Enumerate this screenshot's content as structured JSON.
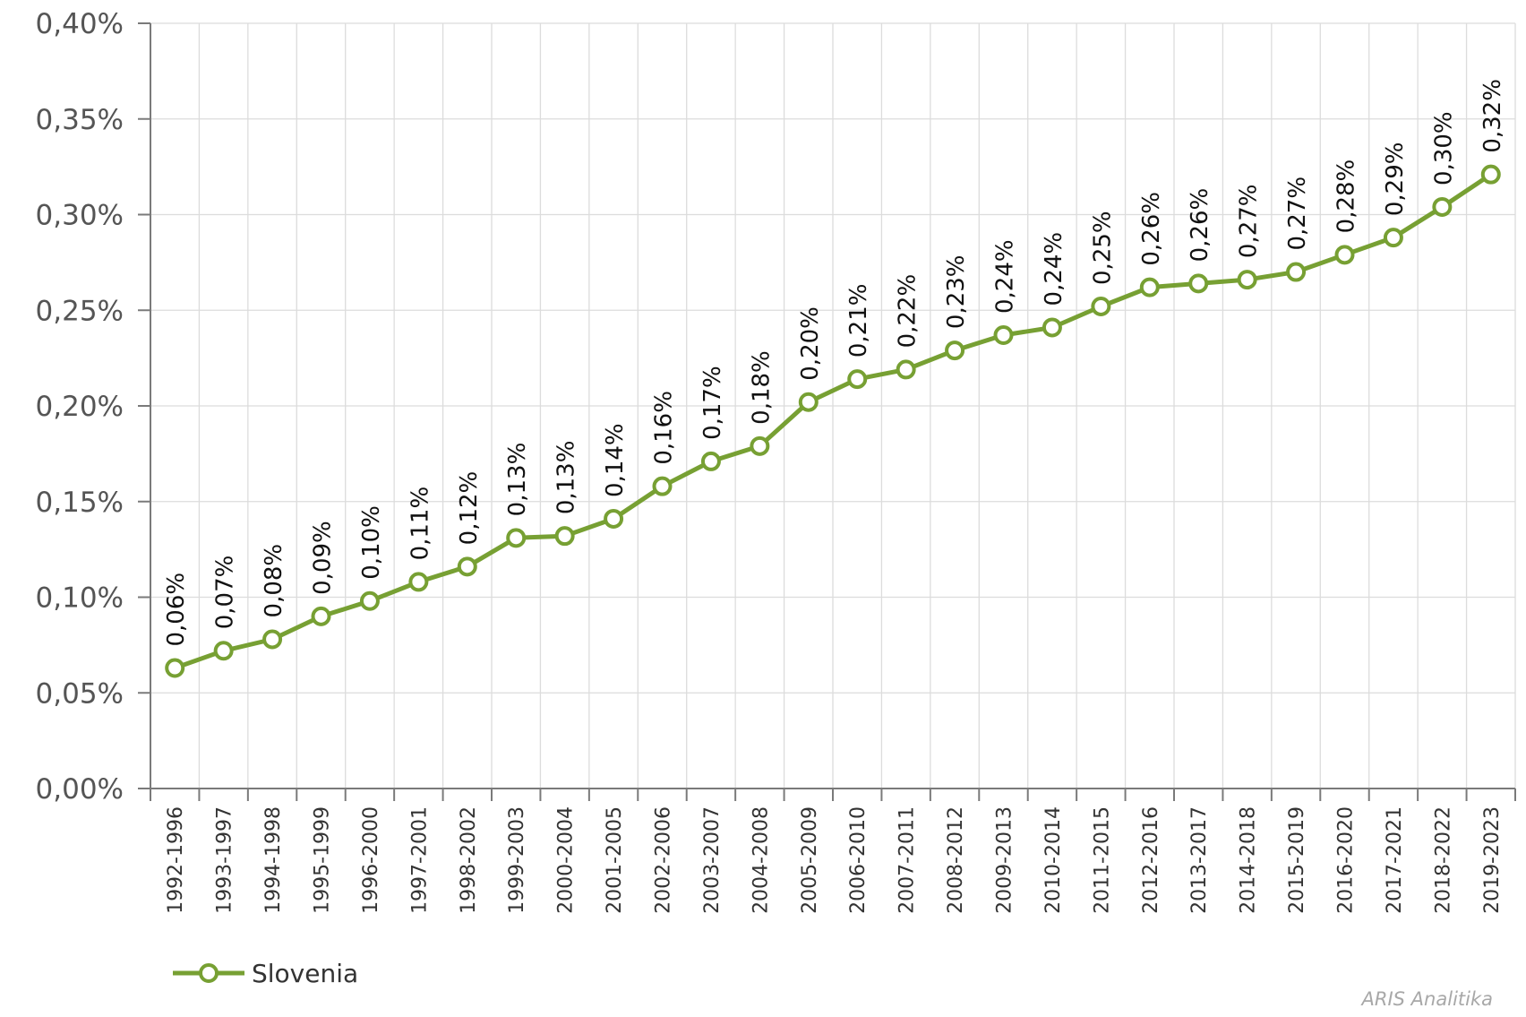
{
  "chart_data": {
    "type": "line",
    "categories": [
      "1992-1996",
      "1993-1997",
      "1994-1998",
      "1995-1999",
      "1996-2000",
      "1997-2001",
      "1998-2002",
      "1999-2003",
      "2000-2004",
      "2001-2005",
      "2002-2006",
      "2003-2007",
      "2004-2008",
      "2005-2009",
      "2006-2010",
      "2007-2011",
      "2008-2012",
      "2009-2013",
      "2010-2014",
      "2011-2015",
      "2012-2016",
      "2013-2017",
      "2014-2018",
      "2015-2019",
      "2016-2020",
      "2017-2021",
      "2018-2022",
      "2019-2023"
    ],
    "series": [
      {
        "name": "Slovenia",
        "color": "#77a033",
        "values": [
          0.063,
          0.072,
          0.078,
          0.09,
          0.098,
          0.108,
          0.116,
          0.131,
          0.132,
          0.141,
          0.158,
          0.171,
          0.179,
          0.202,
          0.214,
          0.219,
          0.229,
          0.237,
          0.241,
          0.252,
          0.262,
          0.264,
          0.266,
          0.27,
          0.279,
          0.288,
          0.304,
          0.321
        ],
        "labels": [
          "0,06%",
          "0,07%",
          "0,08%",
          "0,09%",
          "0,10%",
          "0,11%",
          "0,12%",
          "0,13%",
          "0,13%",
          "0,14%",
          "0,16%",
          "0,17%",
          "0,18%",
          "0,20%",
          "0,21%",
          "0,22%",
          "0,23%",
          "0,24%",
          "0,24%",
          "0,25%",
          "0,26%",
          "0,26%",
          "0,27%",
          "0,27%",
          "0,28%",
          "0,29%",
          "0,30%",
          "0,32%"
        ]
      }
    ],
    "ylim": [
      0,
      0.4
    ],
    "yticks": [
      0,
      0.05,
      0.1,
      0.15,
      0.2,
      0.25,
      0.3,
      0.35,
      0.4
    ],
    "ytick_labels": [
      "0,00%",
      "0,05%",
      "0,10%",
      "0,15%",
      "0,20%",
      "0,25%",
      "0,30%",
      "0,35%",
      "0,40%"
    ],
    "grid": true,
    "legend_position": "bottom-left",
    "title": "",
    "xlabel": "",
    "ylabel": ""
  },
  "watermark": "ARIS Analitika"
}
